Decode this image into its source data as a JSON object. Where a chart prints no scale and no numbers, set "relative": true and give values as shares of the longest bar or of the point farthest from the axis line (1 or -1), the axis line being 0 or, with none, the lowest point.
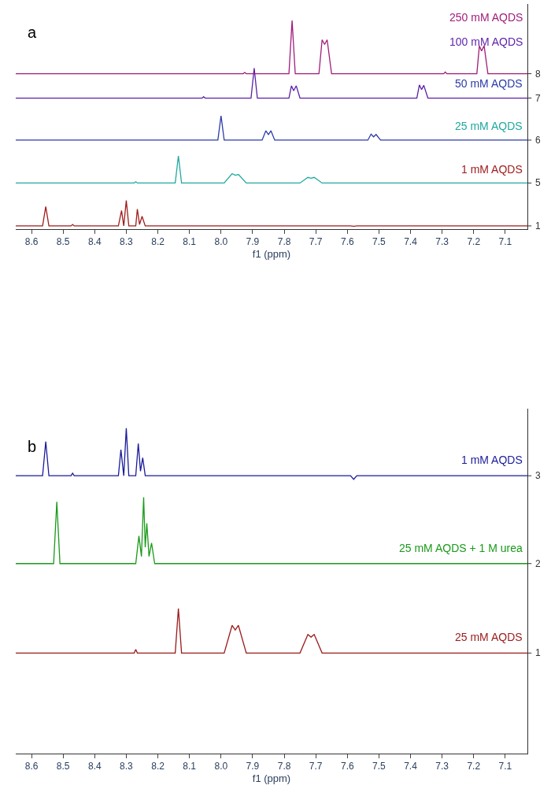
{
  "chart_data": [
    {
      "type": "line",
      "relative": true,
      "xlabel": "f1 (ppm)",
      "annotations": [
        "a",
        "1",
        "5",
        "6",
        "7",
        "8"
      ],
      "xlim": [
        8.65,
        7.03
      ],
      "xticks": [
        8.6,
        8.5,
        8.4,
        8.3,
        8.2,
        8.1,
        {
          "value": 8.0,
          "label": "8.0"
        },
        7.9,
        7.8,
        7.7,
        7.6,
        7.5,
        7.4,
        7.3,
        7.2,
        7.1
      ],
      "series": [
        {
          "name": "1 mM AQDS",
          "color": "#a01c1c",
          "x": [
            8.65,
            8.565,
            8.555,
            8.545,
            8.475,
            8.47,
            8.465,
            8.325,
            8.315,
            8.308,
            8.3,
            8.292,
            8.27,
            8.265,
            8.258,
            8.25,
            8.24,
            7.59,
            7.58,
            7.57,
            7.03
          ],
          "values": [
            0.014,
            0.014,
            0.107,
            0.014,
            0.014,
            0.021,
            0.014,
            0.014,
            0.088,
            0.014,
            0.136,
            0.014,
            0.014,
            0.095,
            0.021,
            0.06,
            0.014,
            0.014,
            0.012,
            0.014,
            0.014
          ]
        },
        {
          "name": "25 mM AQDS",
          "color": "#20a8a0",
          "x": [
            8.65,
            8.275,
            8.27,
            8.265,
            8.145,
            8.135,
            8.125,
            7.99,
            7.965,
            7.955,
            7.945,
            7.92,
            7.75,
            7.725,
            7.715,
            7.705,
            7.68,
            7.03
          ],
          "values": [
            0.22,
            0.22,
            0.226,
            0.22,
            0.22,
            0.35,
            0.22,
            0.22,
            0.265,
            0.257,
            0.261,
            0.22,
            0.22,
            0.247,
            0.243,
            0.247,
            0.22,
            0.22
          ]
        },
        {
          "name": "50 mM AQDS",
          "color": "#2a3aa8",
          "x": [
            8.65,
            8.01,
            8.0,
            7.99,
            7.87,
            7.858,
            7.85,
            7.842,
            7.83,
            7.535,
            7.525,
            7.517,
            7.509,
            7.495,
            7.03
          ],
          "values": [
            0.426,
            0.426,
            0.543,
            0.426,
            0.426,
            0.471,
            0.453,
            0.471,
            0.426,
            0.426,
            0.455,
            0.442,
            0.453,
            0.426,
            0.426
          ]
        },
        {
          "name": "100 mM AQDS",
          "color": "#5a1fa8",
          "x": [
            8.65,
            8.06,
            8.055,
            8.05,
            7.905,
            7.895,
            7.885,
            7.785,
            7.777,
            7.77,
            7.762,
            7.75,
            7.38,
            7.372,
            7.365,
            7.358,
            7.345,
            7.03
          ],
          "values": [
            0.628,
            0.628,
            0.634,
            0.628,
            0.628,
            0.772,
            0.628,
            0.628,
            0.687,
            0.663,
            0.687,
            0.628,
            0.628,
            0.691,
            0.669,
            0.689,
            0.628,
            0.628
          ]
        },
        {
          "name": "250 mM AQDS",
          "color": "#a01c7a",
          "x": [
            8.65,
            7.93,
            7.925,
            7.92,
            7.785,
            7.775,
            7.765,
            7.69,
            7.68,
            7.672,
            7.664,
            7.65,
            7.295,
            7.29,
            7.285,
            7.19,
            7.182,
            7.175,
            7.167,
            7.155,
            7.03
          ],
          "values": [
            0.745,
            0.745,
            0.751,
            0.745,
            0.745,
            1,
            0.745,
            0.745,
            0.908,
            0.885,
            0.908,
            0.745,
            0.745,
            0.753,
            0.745,
            0.745,
            0.879,
            0.854,
            0.879,
            0.745,
            0.745
          ]
        }
      ]
    },
    {
      "type": "line",
      "relative": true,
      "xlabel": "f1 (ppm)",
      "annotations": [
        "b",
        "1",
        "2",
        "3"
      ],
      "xlim": [
        8.65,
        7.03
      ],
      "xticks": [
        8.6,
        8.5,
        8.4,
        8.3,
        8.2,
        8.1,
        {
          "value": 8.0,
          "label": "8.0"
        },
        7.9,
        7.8,
        7.7,
        7.6,
        7.5,
        7.4,
        7.3,
        7.2,
        7.1
      ],
      "series": [
        {
          "name": "25 mM AQDS",
          "color": "#9a1a1a",
          "x": [
            8.65,
            8.275,
            8.27,
            8.265,
            8.145,
            8.135,
            8.125,
            7.99,
            7.965,
            7.955,
            7.945,
            7.92,
            7.75,
            7.725,
            7.715,
            7.705,
            7.68,
            7.03
          ],
          "values": [
            0.309,
            0.309,
            0.32,
            0.309,
            0.309,
            0.446,
            0.309,
            0.309,
            0.394,
            0.38,
            0.394,
            0.309,
            0.309,
            0.366,
            0.358,
            0.366,
            0.309,
            0.309
          ]
        },
        {
          "name": "25 mM AQDS + 1 M urea",
          "color": "#1a9a1a",
          "x": [
            8.65,
            8.53,
            8.52,
            8.51,
            8.27,
            8.26,
            8.252,
            8.245,
            8.24,
            8.235,
            8.228,
            8.22,
            8.21,
            7.03
          ],
          "values": [
            0.584,
            0.584,
            0.774,
            0.584,
            0.584,
            0.669,
            0.606,
            0.788,
            0.634,
            0.708,
            0.606,
            0.647,
            0.584,
            0.584
          ]
        },
        {
          "name": "1 mM AQDS",
          "color": "#1a1a9a",
          "x": [
            8.65,
            8.565,
            8.555,
            8.545,
            8.475,
            8.47,
            8.465,
            8.325,
            8.317,
            8.308,
            8.3,
            8.292,
            8.27,
            8.262,
            8.255,
            8.248,
            8.24,
            7.59,
            7.58,
            7.57,
            7.03
          ],
          "values": [
            0.854,
            0.854,
            0.959,
            0.854,
            0.854,
            0.862,
            0.854,
            0.854,
            0.934,
            0.854,
            1,
            0.854,
            0.854,
            0.953,
            0.868,
            0.909,
            0.854,
            0.854,
            0.843,
            0.854,
            0.854
          ]
        }
      ]
    }
  ]
}
